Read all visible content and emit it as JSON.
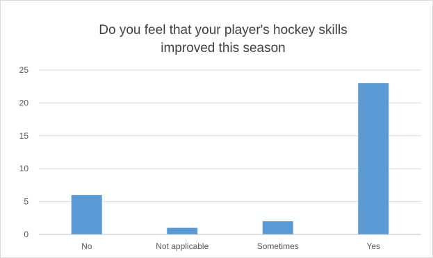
{
  "chart_data": {
    "type": "bar",
    "title_lines": [
      "Do you feel that your player's hockey skills",
      "improved this season"
    ],
    "categories": [
      "No",
      "Not applicable",
      "Sometimes",
      "Yes"
    ],
    "values": [
      6,
      1,
      2,
      23
    ],
    "ylim": [
      0,
      25
    ],
    "yticks": [
      "0",
      "5",
      "10",
      "15",
      "20",
      "25"
    ],
    "xlabel": "",
    "ylabel": "",
    "grid": true,
    "legend": "none",
    "colors": {
      "bar": "#5b9bd5",
      "grid": "#d9d9d9",
      "axis": "#bfbfbf",
      "text": "#595959",
      "title": "#404040"
    }
  }
}
